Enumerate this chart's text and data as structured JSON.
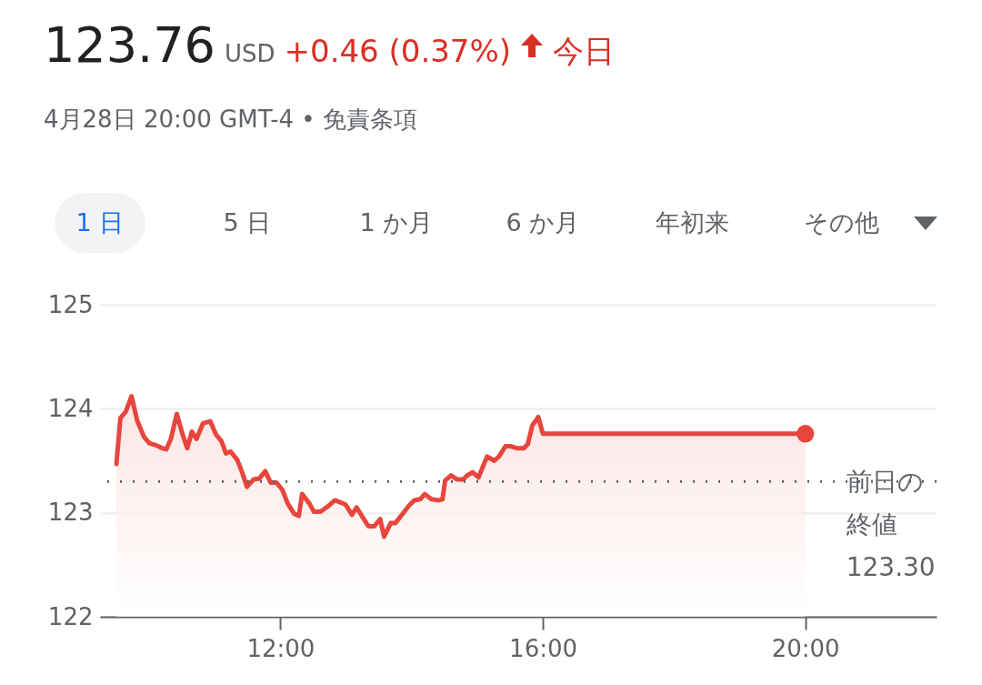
{
  "chart_data": {
    "type": "area",
    "title": "123.76",
    "subtitle": "4月28日 20:00 GMT-4 • 免責条項",
    "annotations": [
      "USD",
      "+0.46 (0.37%)",
      "今日",
      "1 日",
      "5 日",
      "1 か月",
      "6 か月",
      "年初来",
      "その他"
    ],
    "xlim": [
      9.25,
      22
    ],
    "xticks": [
      {
        "value": 12,
        "label": "12:00"
      },
      {
        "value": 16,
        "label": "16:00"
      },
      {
        "value": 20,
        "label": "20:00"
      }
    ],
    "ylim": [
      122,
      125
    ],
    "yticks": [
      122,
      123,
      124,
      125
    ],
    "grid": "y",
    "series": [
      {
        "color": "#e8453c",
        "x": [
          9.5,
          9.56,
          9.64,
          9.73,
          9.82,
          9.92,
          10.0,
          10.1,
          10.2,
          10.26,
          10.33,
          10.42,
          10.51,
          10.58,
          10.65,
          10.72,
          10.82,
          10.93,
          11.02,
          11.1,
          11.17,
          11.24,
          11.34,
          11.41,
          11.49,
          11.59,
          11.68,
          11.77,
          11.85,
          11.94,
          12.03,
          12.11,
          12.21,
          12.28,
          12.33,
          12.44,
          12.51,
          12.61,
          12.72,
          12.83,
          12.99,
          13.09,
          13.16,
          13.27,
          13.34,
          13.43,
          13.52,
          13.58,
          13.68,
          13.75,
          13.85,
          13.96,
          14.04,
          14.13,
          14.2,
          14.3,
          14.41,
          14.47,
          14.51,
          14.6,
          14.69,
          14.78,
          14.85,
          14.93,
          15.02,
          15.09,
          15.15,
          15.26,
          15.33,
          15.43,
          15.51,
          15.61,
          15.71,
          15.77,
          15.84,
          15.93,
          16.0,
          20.0
        ],
        "values": [
          123.47,
          123.91,
          123.97,
          124.12,
          123.88,
          123.73,
          123.67,
          123.65,
          123.62,
          123.61,
          123.71,
          123.95,
          123.75,
          123.62,
          123.78,
          123.71,
          123.86,
          123.88,
          123.75,
          123.69,
          123.57,
          123.59,
          123.51,
          123.4,
          123.25,
          123.32,
          123.33,
          123.4,
          123.29,
          123.29,
          123.22,
          123.09,
          122.99,
          122.97,
          123.18,
          123.09,
          123.01,
          123.01,
          123.06,
          123.12,
          123.08,
          122.98,
          123.05,
          122.94,
          122.87,
          122.87,
          122.94,
          122.77,
          122.9,
          122.9,
          122.98,
          123.07,
          123.12,
          123.13,
          123.18,
          123.13,
          123.12,
          123.13,
          123.31,
          123.36,
          123.32,
          123.32,
          123.36,
          123.39,
          123.34,
          123.45,
          123.54,
          123.5,
          123.54,
          123.64,
          123.64,
          123.62,
          123.62,
          123.66,
          123.84,
          123.92,
          123.76,
          123.76
        ]
      },
      {
        "type": "scatter",
        "color": "#e8453c",
        "marker": "circle",
        "x": [
          20.0
        ],
        "values": [
          123.76
        ]
      }
    ],
    "ref_lines": [
      {
        "axis": "y",
        "value": 123.3,
        "label": "前日の終値 123.30",
        "line_style": "dotted",
        "color": "#5f6368"
      }
    ]
  }
}
